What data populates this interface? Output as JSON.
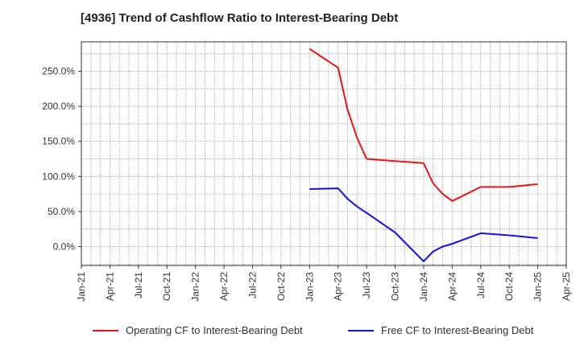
{
  "chart_data": {
    "type": "line",
    "title": "[4936]  Trend of Cashflow Ratio to Interest-Bearing Debt",
    "xlabel": "",
    "ylabel": "",
    "x_ticks": [
      "Jan-21",
      "Apr-21",
      "Jul-21",
      "Oct-21",
      "Jan-22",
      "Apr-22",
      "Jul-22",
      "Oct-22",
      "Jan-23",
      "Apr-23",
      "Jul-23",
      "Oct-23",
      "Jan-24",
      "Apr-24",
      "Jul-24",
      "Oct-24",
      "Jan-25",
      "Apr-25"
    ],
    "y_ticks": [
      0,
      50,
      100,
      150,
      200,
      250
    ],
    "y_tick_labels": [
      "0.0%",
      "50.0%",
      "100.0%",
      "150.0%",
      "200.0%",
      "250.0%"
    ],
    "ylim": [
      -27,
      292
    ],
    "x_range_months": [
      0,
      51
    ],
    "grid": true,
    "legend_position": "bottom",
    "series": [
      {
        "name": "Operating CF to Interest-Bearing Debt",
        "color": "#ee1111",
        "x_months": [
          24,
          27,
          28,
          29,
          30,
          33,
          36,
          37,
          38,
          39,
          42,
          45,
          48
        ],
        "values": [
          282,
          255,
          195,
          155,
          125,
          122,
          119,
          90,
          75,
          65,
          85,
          85,
          89
        ]
      },
      {
        "name": "Free CF to Interest-Bearing Debt",
        "color": "#1111ee",
        "x_months": [
          24,
          27,
          28,
          29,
          30,
          33,
          36,
          37,
          38,
          39,
          42,
          45,
          48
        ],
        "values": [
          82,
          83,
          68,
          57,
          48,
          20,
          -21,
          -7,
          0,
          4,
          19,
          16,
          12
        ]
      }
    ]
  }
}
